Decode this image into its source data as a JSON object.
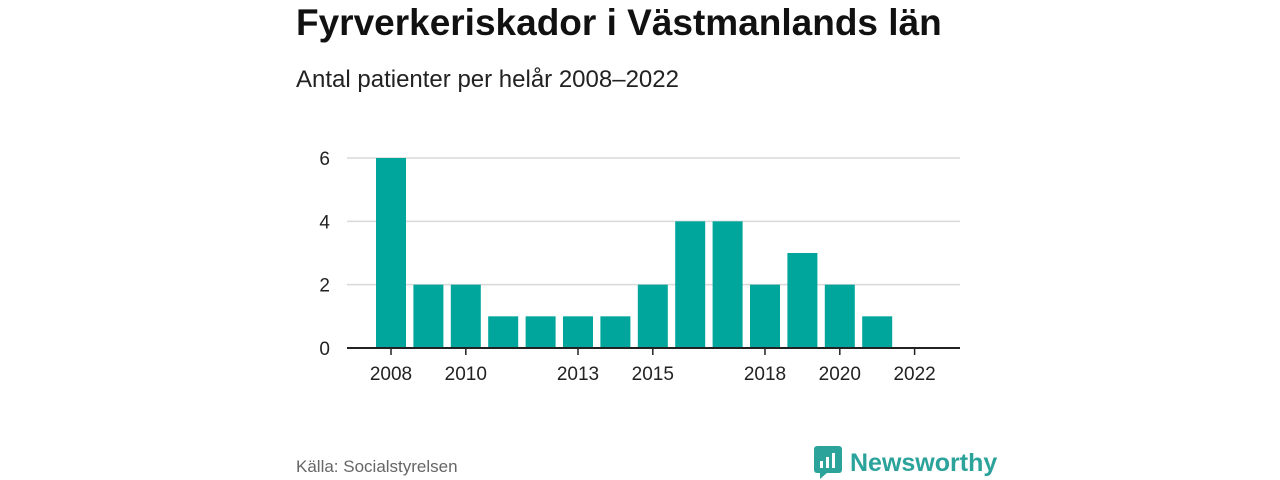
{
  "title": "Fyrverkeriskador i Västmanlands län",
  "subtitle": "Antal patienter per helår 2008–2022",
  "source": "Källa: Socialstyrelsen",
  "brand": "Newsworthy",
  "colors": {
    "bar": "#00a69c",
    "grid": "#d9d9d9",
    "axis": "#222222",
    "brand": "#2ba39a"
  },
  "chart_data": {
    "type": "bar",
    "x": [
      2008,
      2009,
      2010,
      2011,
      2012,
      2013,
      2014,
      2015,
      2016,
      2017,
      2018,
      2019,
      2020,
      2021,
      2022
    ],
    "values": [
      6,
      2,
      2,
      1,
      1,
      1,
      1,
      2,
      4,
      4,
      2,
      3,
      2,
      1,
      0
    ],
    "x_tick_labels": [
      "2008",
      "2010",
      "2013",
      "2015",
      "2018",
      "2020",
      "2022"
    ],
    "y_ticks": [
      0,
      2,
      4,
      6
    ],
    "ylim": [
      0,
      6
    ],
    "grid": true
  }
}
